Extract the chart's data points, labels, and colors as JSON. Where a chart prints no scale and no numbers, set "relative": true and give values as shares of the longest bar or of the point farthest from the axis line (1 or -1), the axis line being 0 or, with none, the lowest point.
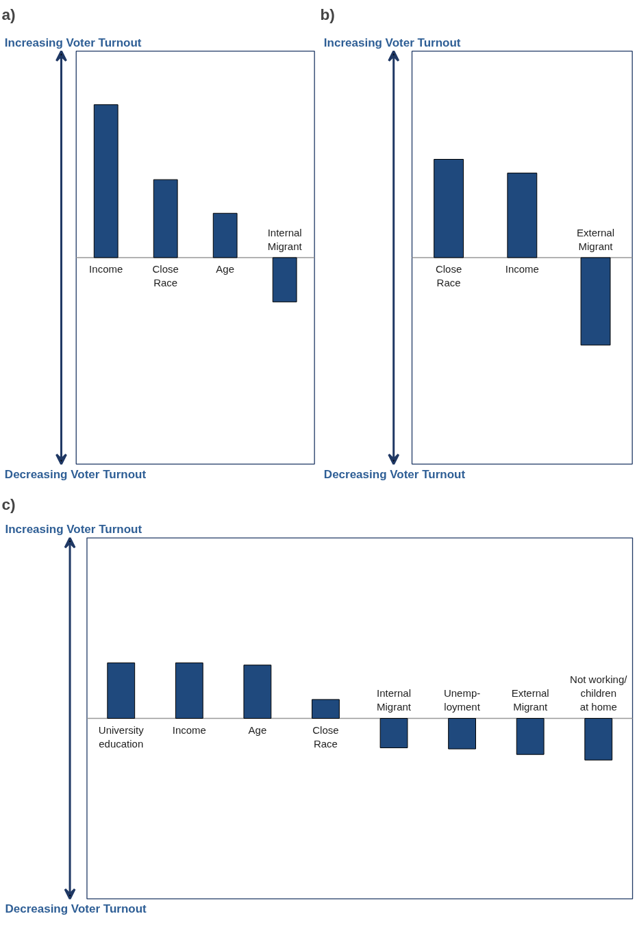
{
  "chart_data": [
    {
      "type": "bar",
      "title": "a)",
      "relative": true,
      "color": "#1f497d",
      "categories": [
        "Income",
        "Close\nRace",
        "Age",
        "Internal\nMigrant"
      ],
      "values": [
        1,
        0.51,
        0.29,
        -0.29
      ],
      "annotations": [
        "Increasing  Voter  Turnout",
        "Decreasing  Voter  Turnout"
      ]
    },
    {
      "type": "bar",
      "title": "b)",
      "relative": true,
      "color": "#1f497d",
      "categories": [
        "Close\nRace",
        "Income",
        "External\nMigrant"
      ],
      "values": [
        1,
        0.86,
        -0.89
      ],
      "annotations": [
        "Increasing  Voter  Turnout",
        "Decreasing  Voter  Turnout"
      ]
    },
    {
      "type": "bar",
      "title": "c)",
      "relative": true,
      "color": "#1f497d",
      "categories": [
        "University\neducation",
        "Income",
        "Age",
        "Close\nRace",
        "Internal\nMigrant",
        "Unemp-\nloyment",
        "External\nMigrant",
        "Not working/\nchildren\nat home"
      ],
      "values": [
        1,
        1,
        0.96,
        0.34,
        -0.53,
        -0.55,
        -0.65,
        -0.75
      ],
      "annotations": [
        "Increasing Voter Turnout",
        "Decreasing Voter Turnout"
      ]
    }
  ]
}
